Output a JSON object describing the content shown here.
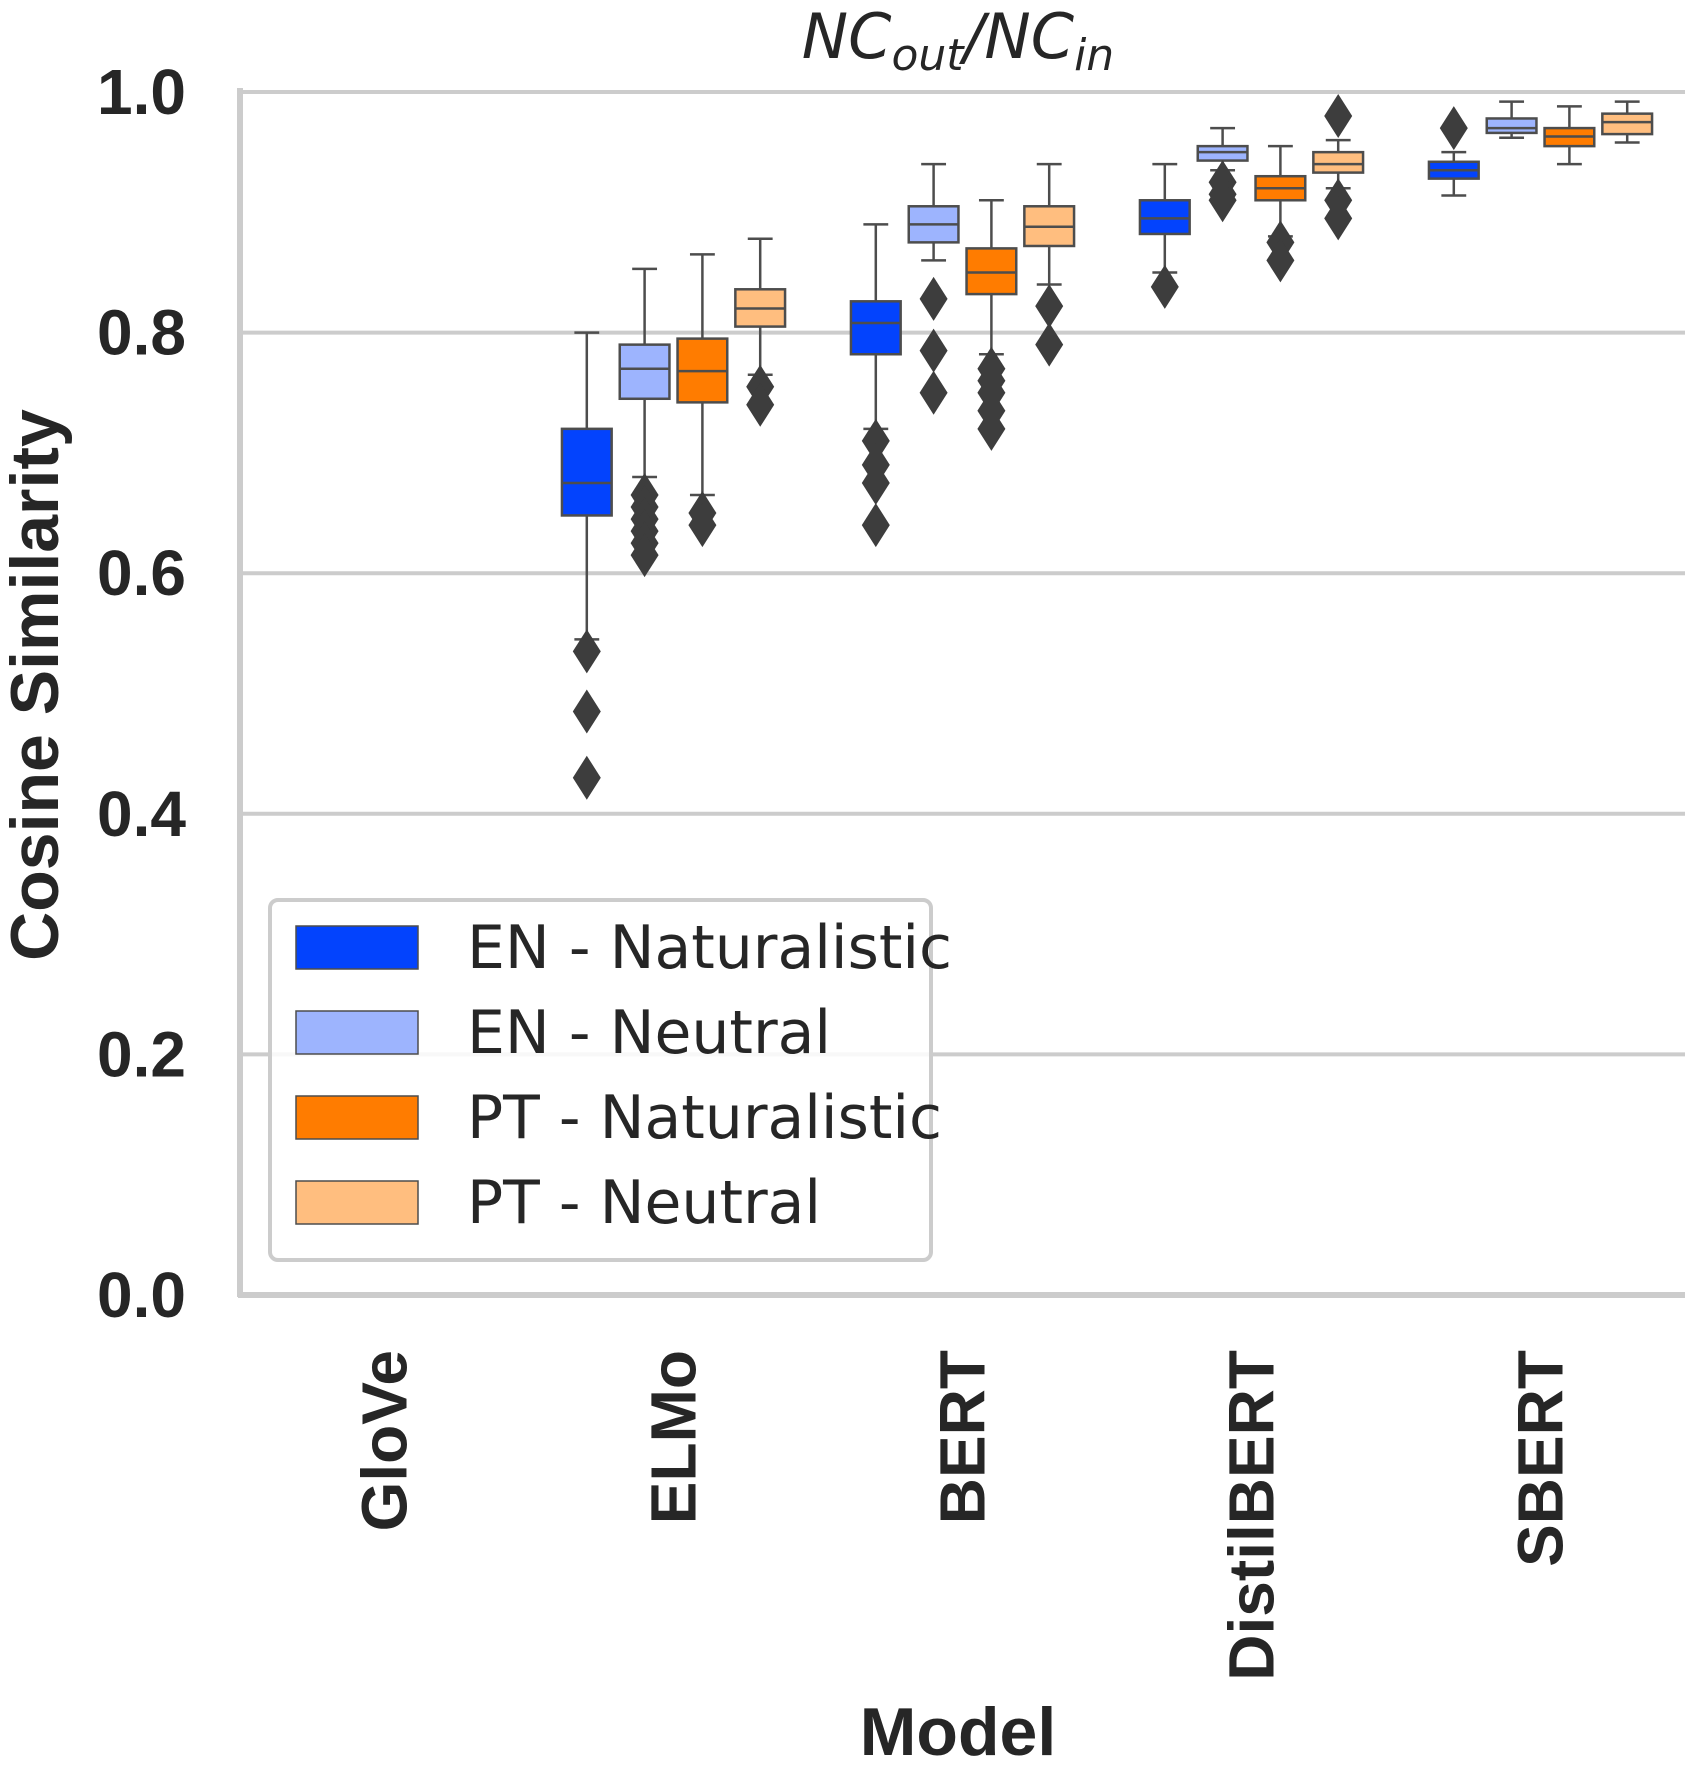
{
  "chart_data": {
    "type": "box",
    "title": {
      "main": "NC",
      "sub1": "out",
      "sep": "/NC",
      "sub2": "in"
    },
    "xlabel": "Model",
    "ylabel": "Cosine Similarity",
    "ylim": [
      0.0,
      1.0
    ],
    "yticks": [
      "0.0",
      "0.2",
      "0.4",
      "0.6",
      "0.8",
      "1.0"
    ],
    "grid": "horizontal",
    "legend_position": "lower-left",
    "categories": [
      "GloVe",
      "ELMo",
      "BERT",
      "DistilBERT",
      "SBERT"
    ],
    "series": [
      {
        "name": "EN - Naturalistic",
        "color": "#0343fd",
        "boxes": [
          null,
          {
            "whislo": 0.545,
            "q1": 0.648,
            "med": 0.675,
            "q3": 0.72,
            "whishi": 0.8,
            "fliers": [
              0.535,
              0.485,
              0.43
            ]
          },
          {
            "whislo": 0.72,
            "q1": 0.782,
            "med": 0.808,
            "q3": 0.826,
            "whishi": 0.89,
            "fliers": [
              0.71,
              0.69,
              0.675,
              0.64
            ]
          },
          {
            "whislo": 0.85,
            "q1": 0.882,
            "med": 0.895,
            "q3": 0.91,
            "whishi": 0.94,
            "fliers": [
              0.838
            ]
          },
          {
            "whislo": 0.914,
            "q1": 0.928,
            "med": 0.935,
            "q3": 0.942,
            "whishi": 0.95,
            "fliers": [
              0.97
            ]
          }
        ]
      },
      {
        "name": "EN - Neutral",
        "color": "#9db4fe",
        "boxes": [
          null,
          {
            "whislo": 0.68,
            "q1": 0.745,
            "med": 0.77,
            "q3": 0.79,
            "whishi": 0.853,
            "fliers": [
              0.665,
              0.655,
              0.645,
              0.635,
              0.625,
              0.615
            ]
          },
          {
            "whislo": 0.86,
            "q1": 0.875,
            "med": 0.89,
            "q3": 0.905,
            "whishi": 0.94,
            "fliers": [
              0.828,
              0.785,
              0.75
            ]
          },
          {
            "whislo": 0.935,
            "q1": 0.943,
            "med": 0.95,
            "q3": 0.955,
            "whishi": 0.97,
            "fliers": [
              0.925,
              0.915,
              0.91
            ]
          },
          {
            "whislo": 0.962,
            "q1": 0.966,
            "med": 0.97,
            "q3": 0.978,
            "whishi": 0.992,
            "fliers": []
          }
        ]
      },
      {
        "name": "PT - Naturalistic",
        "color": "#ff7c00",
        "boxes": [
          null,
          {
            "whislo": 0.665,
            "q1": 0.742,
            "med": 0.768,
            "q3": 0.795,
            "whishi": 0.865,
            "fliers": [
              0.65,
              0.64
            ]
          },
          {
            "whislo": 0.782,
            "q1": 0.832,
            "med": 0.85,
            "q3": 0.87,
            "whishi": 0.91,
            "fliers": [
              0.77,
              0.76,
              0.75,
              0.735,
              0.72
            ]
          },
          {
            "whislo": 0.88,
            "q1": 0.91,
            "med": 0.92,
            "q3": 0.93,
            "whishi": 0.955,
            "fliers": [
              0.875,
              0.86
            ]
          },
          {
            "whislo": 0.94,
            "q1": 0.955,
            "med": 0.963,
            "q3": 0.97,
            "whishi": 0.988,
            "fliers": []
          }
        ]
      },
      {
        "name": "PT - Neutral",
        "color": "#ffbe7f",
        "boxes": [
          null,
          {
            "whislo": 0.765,
            "q1": 0.805,
            "med": 0.82,
            "q3": 0.836,
            "whishi": 0.878,
            "fliers": [
              0.755,
              0.74
            ]
          },
          {
            "whislo": 0.84,
            "q1": 0.872,
            "med": 0.888,
            "q3": 0.905,
            "whishi": 0.94,
            "fliers": [
              0.822,
              0.79
            ]
          },
          {
            "whislo": 0.92,
            "q1": 0.933,
            "med": 0.94,
            "q3": 0.95,
            "whishi": 0.96,
            "fliers": [
              0.98,
              0.91,
              0.895
            ]
          },
          {
            "whislo": 0.958,
            "q1": 0.965,
            "med": 0.975,
            "q3": 0.982,
            "whishi": 0.992,
            "fliers": []
          }
        ]
      }
    ]
  }
}
